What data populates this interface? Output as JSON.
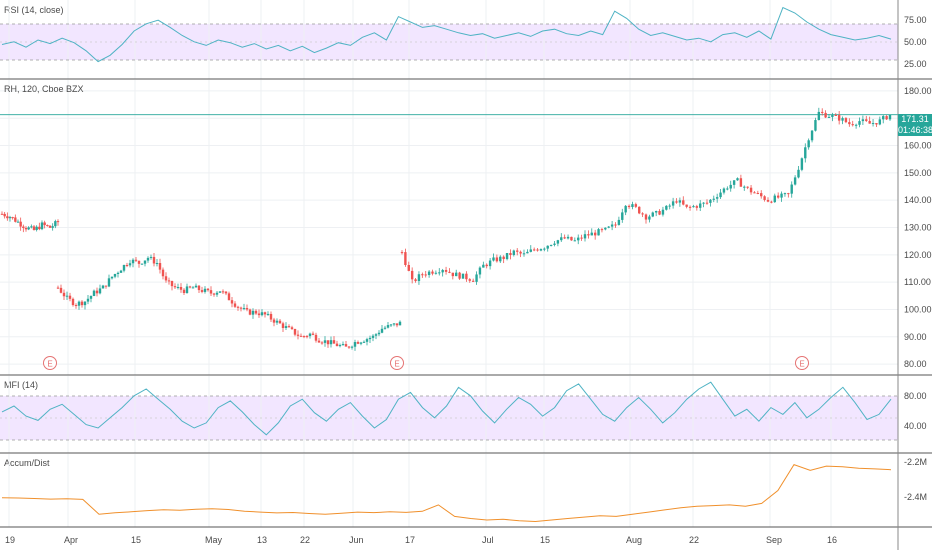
{
  "panes": {
    "rsi": {
      "label": "RSI (14, close)",
      "ticks": [
        "75.00",
        "50.00",
        "25.00"
      ]
    },
    "price": {
      "label": "RH, 120, Cboe BZX",
      "ticks": [
        "180.00",
        "170.00",
        "160.00",
        "150.00",
        "140.00",
        "130.00",
        "120.00",
        "110.00",
        "100.00",
        "90.00",
        "80.00"
      ],
      "last_price": "171.31",
      "countdown": "01:46:38"
    },
    "mfi": {
      "label": "MFI (14)",
      "ticks": [
        "80.00",
        "40.00"
      ]
    },
    "accum": {
      "label": "Accum/Dist",
      "ticks": [
        "-2.2M",
        "-2.4M"
      ]
    }
  },
  "earnings_marker": "E",
  "x_axis": [
    "19",
    "Apr",
    "15",
    "May",
    "13",
    "22",
    "Jun",
    "17",
    "Jul",
    "15",
    "Aug",
    "22",
    "Sep",
    "16"
  ],
  "colors": {
    "up": "#26a69a",
    "down": "#ef5350",
    "rsi": "#4fb3c4",
    "mfi": "#4fb3c4",
    "accum": "#f0902c",
    "band": "#f2e6ff",
    "earnings": "#e57373"
  },
  "chart_data": {
    "type": "candlestick",
    "title": "RH, 120, Cboe BZX",
    "ylim": [
      76,
      184
    ],
    "price_segments": [
      {
        "from": "Mar 19",
        "to": "Mar 29",
        "points": [
          135,
          134,
          132,
          130,
          129,
          131,
          130,
          132
        ]
      },
      {
        "from": "Apr 1",
        "to": "Jun 11",
        "points": [
          108,
          104,
          102,
          103,
          106,
          108,
          112,
          115,
          118,
          117,
          119,
          117,
          110,
          108,
          107,
          108,
          107,
          106,
          107,
          104,
          101,
          99,
          99,
          98,
          96,
          94,
          92,
          90,
          91,
          89,
          88,
          87,
          86,
          88,
          89,
          90,
          93,
          94,
          95
        ]
      },
      {
        "from": "Jun 12",
        "to": "Sep 27",
        "points": [
          121,
          110,
          113,
          114,
          115,
          113,
          112,
          111,
          116,
          118,
          119,
          121,
          120,
          122,
          123,
          125,
          126,
          125,
          127,
          128,
          129,
          131,
          139,
          137,
          134,
          135,
          137,
          140,
          137,
          138,
          139,
          142,
          145,
          147,
          144,
          142,
          140,
          141,
          142,
          152,
          163,
          172,
          171,
          170,
          168,
          169,
          168,
          169,
          171.31
        ]
      }
    ],
    "last_price": 171.31,
    "earnings": [
      "Mar 28",
      "Jun 12",
      "Sep 11"
    ],
    "rsi": {
      "ylim": [
        10,
        90
      ],
      "bands": [
        30,
        70
      ],
      "values": [
        45,
        48,
        42,
        50,
        46,
        52,
        47,
        38,
        26,
        33,
        45,
        60,
        68,
        72,
        64,
        55,
        48,
        44,
        50,
        47,
        42,
        46,
        40,
        44,
        38,
        43,
        36,
        41,
        47,
        44,
        53,
        58,
        50,
        76,
        70,
        64,
        66,
        62,
        58,
        55,
        57,
        52,
        55,
        58,
        54,
        60,
        62,
        57,
        55,
        60,
        56,
        82,
        74,
        62,
        55,
        58,
        54,
        50,
        52,
        48,
        56,
        58,
        53,
        60,
        51,
        86,
        80,
        70,
        62,
        56,
        53,
        50,
        52,
        55,
        51
      ]
    },
    "mfi": {
      "ylim": [
        10,
        95
      ],
      "bands": [
        30,
        80
      ],
      "values": [
        55,
        62,
        50,
        45,
        58,
        64,
        52,
        40,
        36,
        48,
        60,
        74,
        82,
        70,
        58,
        44,
        36,
        42,
        60,
        68,
        55,
        40,
        28,
        42,
        62,
        70,
        54,
        44,
        58,
        66,
        50,
        36,
        46,
        70,
        78,
        60,
        48,
        62,
        84,
        74,
        56,
        42,
        58,
        72,
        64,
        50,
        60,
        80,
        88,
        70,
        52,
        44,
        60,
        72,
        58,
        42,
        54,
        70,
        82,
        90,
        70,
        50,
        58,
        44,
        60,
        52,
        66,
        48,
        58,
        72,
        84,
        66,
        46,
        52,
        70
      ]
    },
    "accum_dist": {
      "ylim": [
        -2.62,
        -2.14
      ],
      "values": [
        -2.43,
        -2.432,
        -2.436,
        -2.44,
        -2.438,
        -2.442,
        -2.545,
        -2.535,
        -2.528,
        -2.52,
        -2.514,
        -2.518,
        -2.51,
        -2.507,
        -2.512,
        -2.524,
        -2.53,
        -2.536,
        -2.533,
        -2.54,
        -2.545,
        -2.538,
        -2.53,
        -2.534,
        -2.528,
        -2.532,
        -2.525,
        -2.48,
        -2.56,
        -2.575,
        -2.585,
        -2.58,
        -2.59,
        -2.596,
        -2.585,
        -2.575,
        -2.565,
        -2.555,
        -2.56,
        -2.545,
        -2.53,
        -2.515,
        -2.5,
        -2.49,
        -2.485,
        -2.48,
        -2.49,
        -2.47,
        -2.38,
        -2.2,
        -2.24,
        -2.21,
        -2.215,
        -2.225,
        -2.23,
        -2.235
      ]
    }
  }
}
